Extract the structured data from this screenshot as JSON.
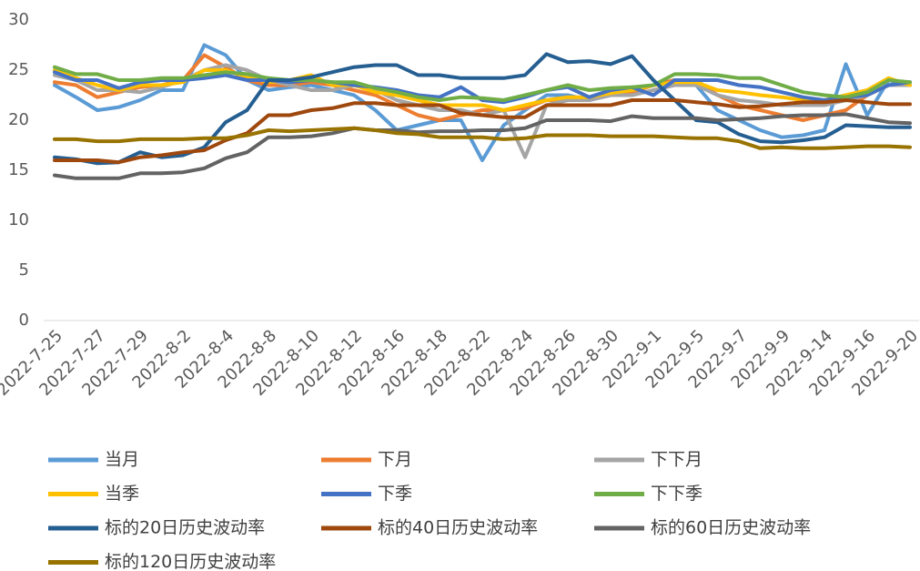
{
  "chart_data": {
    "type": "line",
    "categories": [
      "2022-7-25",
      null,
      "2022-7-27",
      null,
      "2022-7-29",
      null,
      "2022-8-2",
      null,
      "2022-8-4",
      null,
      "2022-8-8",
      null,
      "2022-8-10",
      null,
      "2022-8-12",
      null,
      "2022-8-16",
      null,
      "2022-8-18",
      null,
      "2022-8-22",
      null,
      "2022-8-24",
      null,
      "2022-8-26",
      null,
      "2022-8-30",
      null,
      "2022-9-1",
      null,
      "2022-9-5",
      null,
      "2022-9-7",
      null,
      "2022-9-9",
      null,
      "2022-9-14",
      null,
      "2022-9-16",
      null,
      "2022-9-20"
    ],
    "ylim": [
      0,
      30
    ],
    "yticks": [
      0,
      5,
      10,
      15,
      20,
      25,
      30
    ],
    "series": [
      {
        "name": "当月",
        "color": "#5B9BD5",
        "values": [
          23.5,
          22.3,
          21,
          21.3,
          22,
          23,
          23,
          27.5,
          26.5,
          24,
          23,
          23.3,
          23.5,
          23,
          22.5,
          21,
          19,
          19.5,
          20,
          20,
          16,
          19.5,
          21,
          22.5,
          22.5,
          22,
          22.5,
          23,
          23.5,
          24,
          23.5,
          21,
          20,
          19,
          18.3,
          18.5,
          19,
          25.6,
          20.5,
          24,
          23.5
        ]
      },
      {
        "name": "下月",
        "color": "#ED7D31",
        "values": [
          23.8,
          23.5,
          22.3,
          22.8,
          23.3,
          23.5,
          24,
          26.5,
          25.3,
          24,
          23.5,
          23.5,
          23.8,
          23.5,
          23,
          22.5,
          21.5,
          20.5,
          20,
          20.5,
          21,
          21,
          21.2,
          22,
          22,
          22.3,
          22.5,
          22.8,
          23.5,
          24,
          24,
          22.5,
          21.5,
          21,
          20.5,
          20,
          20.5,
          21,
          22.5,
          23.5,
          23.5
        ]
      },
      {
        "name": "下下月",
        "color": "#A5A5A5",
        "values": [
          24.5,
          24,
          23,
          23,
          22.8,
          23.3,
          24,
          25,
          25.5,
          25,
          24,
          23.5,
          23,
          23,
          23.5,
          23,
          22,
          21.5,
          21,
          21,
          20.5,
          21,
          16.3,
          21.5,
          22,
          22,
          22.5,
          22.5,
          23,
          23.5,
          23.5,
          22.5,
          22,
          21.8,
          21.5,
          21.5,
          21.5,
          22,
          22.5,
          23.5,
          23.5
        ]
      },
      {
        "name": "当季",
        "color": "#FFC000",
        "values": [
          25,
          24.2,
          23.5,
          23,
          23.5,
          23.5,
          23.8,
          25,
          25,
          24.3,
          23.8,
          24,
          24.5,
          23.5,
          23.5,
          22.8,
          22.5,
          22,
          21.5,
          21.5,
          21.5,
          21,
          21.5,
          22,
          22.3,
          22.3,
          22.7,
          23,
          23.5,
          23.8,
          23.8,
          23,
          22.8,
          22.5,
          22.3,
          22,
          22,
          22.5,
          23,
          24.2,
          23.5
        ]
      },
      {
        "name": "下季",
        "color": "#4472C4",
        "values": [
          24.8,
          24,
          24,
          23.2,
          23.8,
          24,
          24,
          24.2,
          24.5,
          24,
          24,
          23.8,
          24,
          23.8,
          23.5,
          23.3,
          23,
          22.5,
          22.3,
          23.3,
          22,
          21.8,
          22.3,
          23,
          23.3,
          22.3,
          23,
          23.3,
          22.5,
          24,
          24,
          24,
          23.5,
          23.3,
          22.8,
          22.3,
          22,
          22.3,
          22.5,
          23.5,
          23.8
        ]
      },
      {
        "name": "下下季",
        "color": "#70AD47",
        "values": [
          25.3,
          24.6,
          24.6,
          24,
          24,
          24.2,
          24.2,
          24.5,
          24.8,
          24.6,
          24.2,
          24,
          24,
          23.8,
          23.8,
          23.2,
          22.8,
          22.3,
          22,
          22.3,
          22.2,
          22,
          22.5,
          23,
          23.5,
          23,
          23.2,
          23.3,
          23.5,
          24.6,
          24.6,
          24.5,
          24.2,
          24.2,
          23.5,
          22.8,
          22.5,
          22.3,
          22.8,
          24,
          23.8
        ]
      },
      {
        "name": "标的20日历史波动率",
        "color": "#255E91",
        "values": [
          16.3,
          16.1,
          15.7,
          15.8,
          16.8,
          16.3,
          16.5,
          17.3,
          19.8,
          21,
          24,
          24,
          24.3,
          24.8,
          25.3,
          25.5,
          25.5,
          24.5,
          24.5,
          24.2,
          24.2,
          24.2,
          24.5,
          26.6,
          25.8,
          25.9,
          25.6,
          26.4,
          24,
          22,
          20,
          19.8,
          18.6,
          17.9,
          17.8,
          18,
          18.3,
          19.5,
          19.4,
          19.3,
          19.3
        ]
      },
      {
        "name": "标的40日历史波动率",
        "color": "#9E480E",
        "values": [
          16,
          16,
          16,
          15.8,
          16.3,
          16.5,
          16.8,
          17,
          18,
          18.7,
          20.5,
          20.5,
          21,
          21.2,
          21.7,
          21.7,
          21.5,
          21.5,
          21.5,
          20.7,
          20.5,
          20.3,
          20.3,
          21.5,
          21.5,
          21.5,
          21.5,
          22,
          22,
          22,
          21.8,
          21.6,
          21.3,
          21.4,
          21.6,
          21.8,
          21.8,
          22,
          21.8,
          21.6,
          21.6
        ]
      },
      {
        "name": "标的60日历史波动率",
        "color": "#636363",
        "values": [
          14.5,
          14.2,
          14.2,
          14.2,
          14.7,
          14.7,
          14.8,
          15.2,
          16.2,
          16.8,
          18.3,
          18.3,
          18.4,
          18.7,
          19.2,
          19,
          19,
          18.8,
          18.9,
          18.9,
          19,
          19,
          19.2,
          20,
          20,
          20,
          19.9,
          20.4,
          20.2,
          20.2,
          20.2,
          20,
          20.1,
          20.2,
          20.4,
          20.5,
          20.5,
          20.6,
          20.2,
          19.8,
          19.7
        ]
      },
      {
        "name": "标的120日历史波动率",
        "color": "#997300",
        "values": [
          18.1,
          18.1,
          17.9,
          17.9,
          18.1,
          18.1,
          18.1,
          18.2,
          18.2,
          18.5,
          19,
          18.9,
          19,
          19.1,
          19.2,
          19,
          18.7,
          18.6,
          18.3,
          18.3,
          18.3,
          18.1,
          18.2,
          18.5,
          18.5,
          18.5,
          18.4,
          18.4,
          18.4,
          18.3,
          18.2,
          18.2,
          17.9,
          17.2,
          17.3,
          17.2,
          17.2,
          17.3,
          17.4,
          17.4,
          17.3
        ]
      }
    ]
  }
}
